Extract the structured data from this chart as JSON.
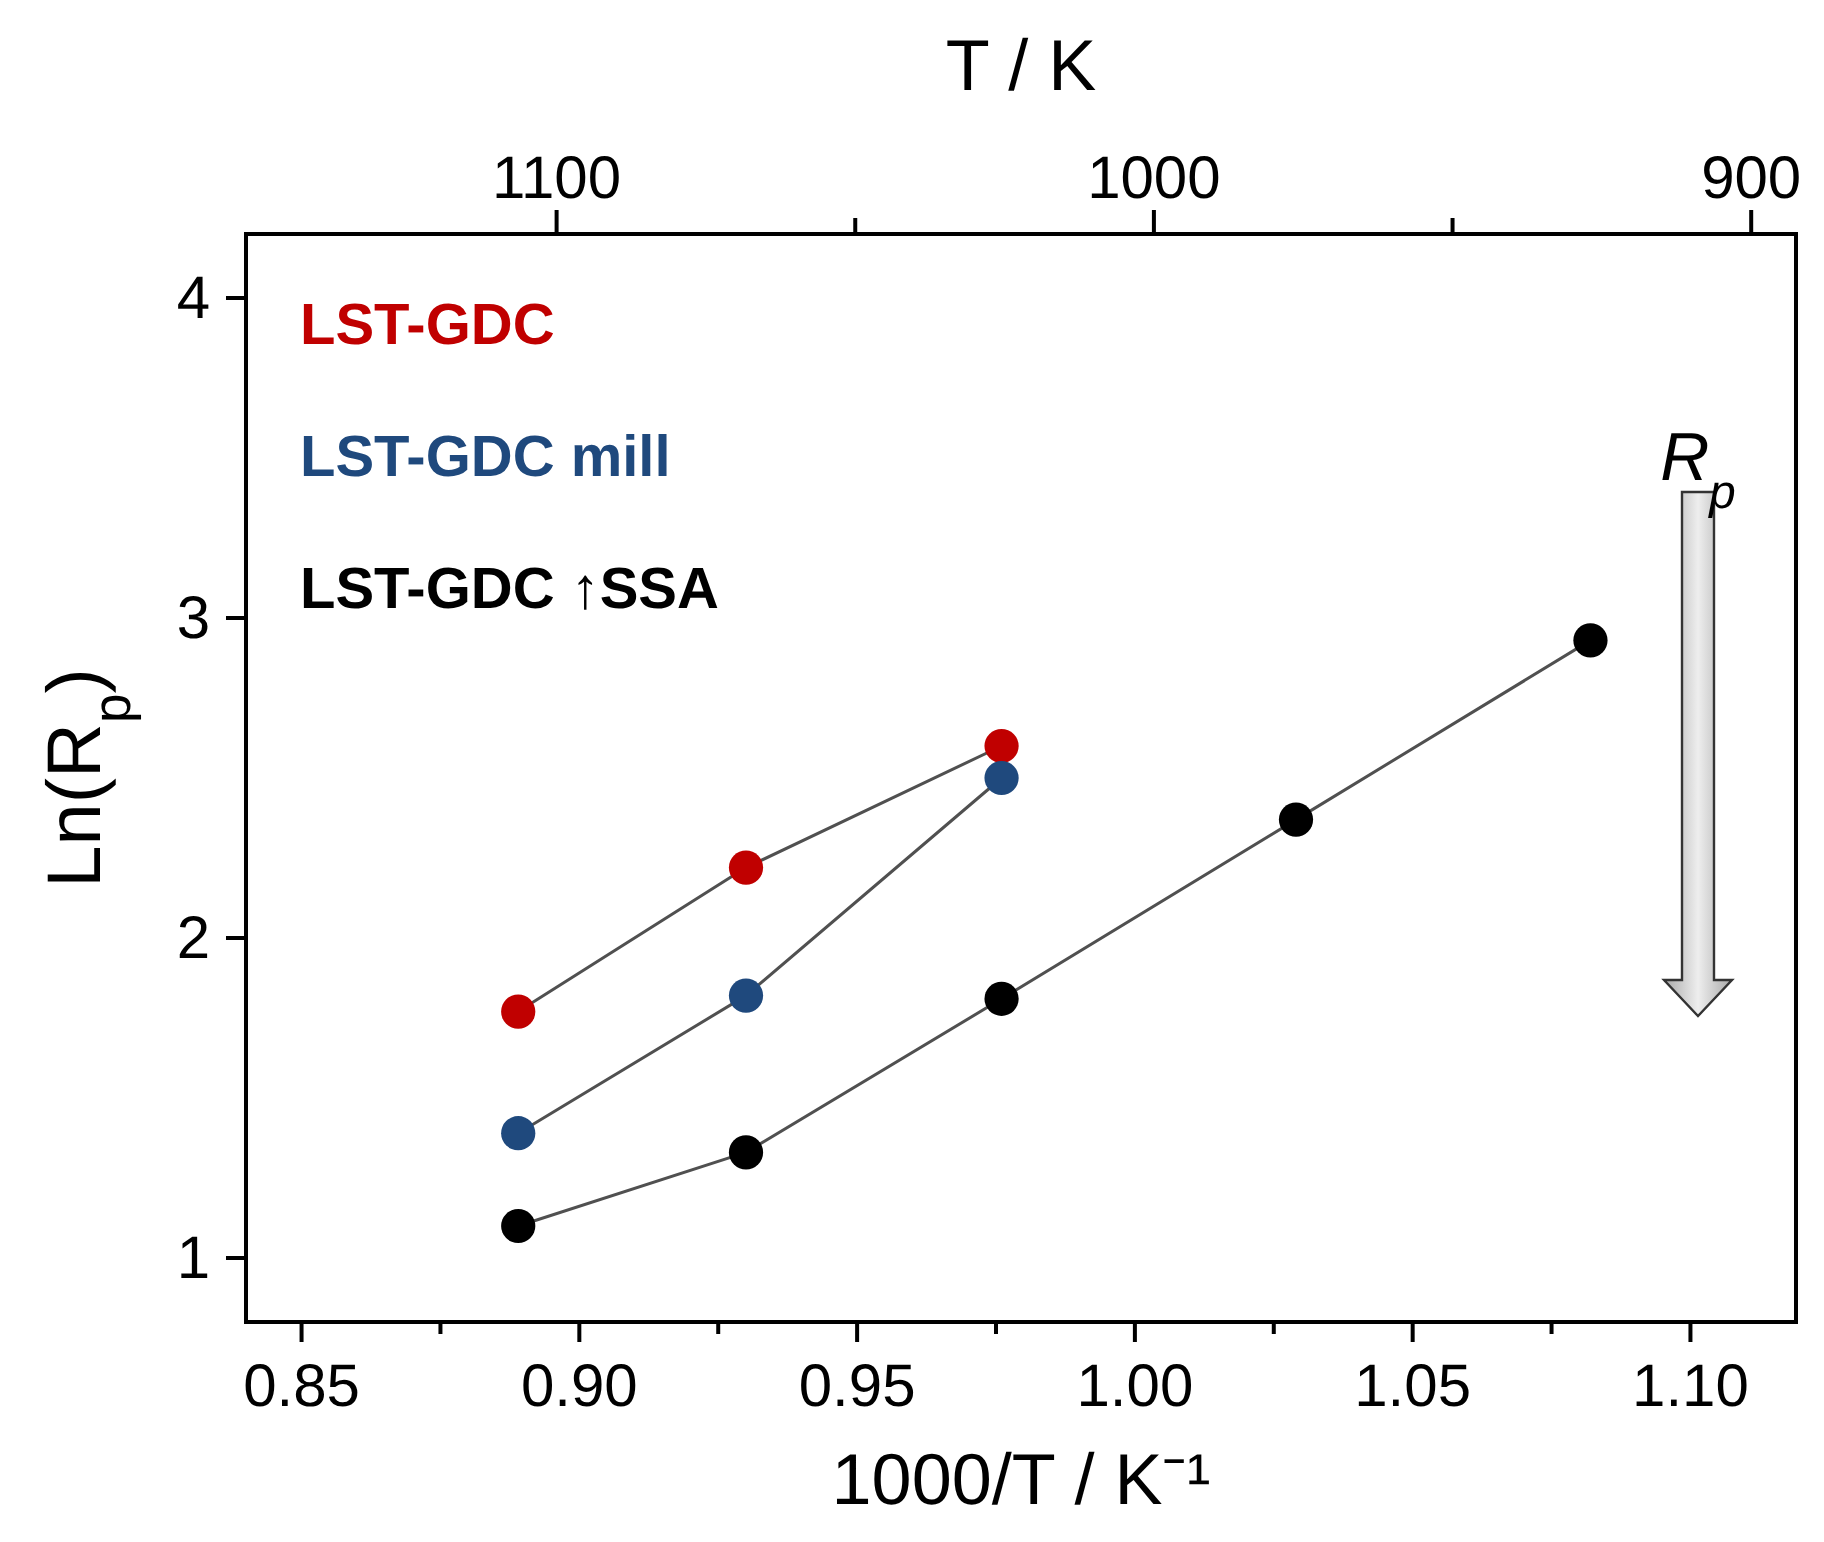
{
  "chart_data": {
    "type": "line",
    "xlabel": "1000/T / K⁻¹",
    "x2label": "T / K",
    "ylabel": "Ln(R$_{p}$)",
    "xlim": [
      0.84,
      1.119
    ],
    "xticks": [
      0.85,
      {
        "value": 0.875,
        "label": null
      },
      "0.90",
      {
        "value": 0.925,
        "label": null
      },
      0.95,
      {
        "value": 0.975,
        "label": null
      },
      "1.00",
      {
        "value": 1.025,
        "label": null
      },
      1.05,
      {
        "value": 1.075,
        "label": null
      },
      "1.10"
    ],
    "x2lim": [
      1152,
      892.5
    ],
    "x2ticks": [
      1100,
      {
        "value": 1050,
        "label": null
      },
      1000,
      {
        "value": 950,
        "label": null
      },
      900
    ],
    "ylim": [
      0.8,
      4.2
    ],
    "yticks": [
      1,
      2,
      3,
      4
    ],
    "marker": "circle",
    "legend": "top left",
    "grid": false,
    "annotations": [
      "R$_{p}$"
    ],
    "series": [
      {
        "name": "LST-GDC",
        "color": "#c00000",
        "x": [
          0.889,
          0.93,
          0.976
        ],
        "values": [
          1.77,
          2.22,
          2.6
        ]
      },
      {
        "name": "LST-GDC mill",
        "color": "#1f497d",
        "x": [
          0.889,
          0.93,
          0.976
        ],
        "values": [
          1.39,
          1.82,
          2.5
        ]
      },
      {
        "name": "LST-GDC ↑SSA",
        "color": "#000000",
        "x": [
          0.889,
          0.93,
          0.976,
          1.029,
          1.082
        ],
        "values": [
          1.1,
          1.33,
          1.81,
          2.37,
          2.93
        ]
      }
    ]
  }
}
